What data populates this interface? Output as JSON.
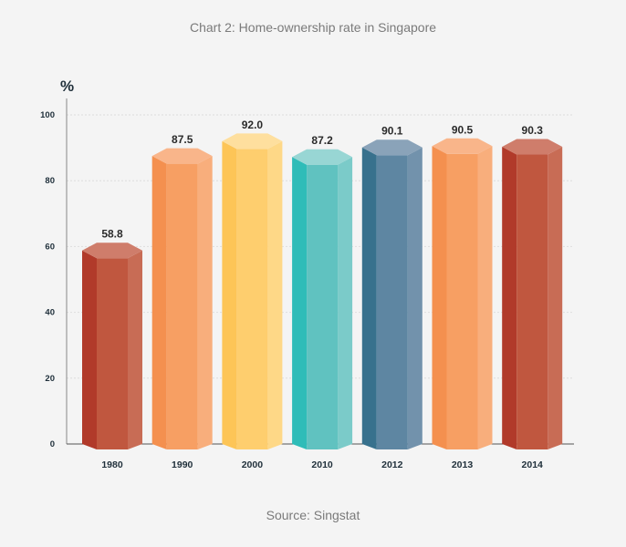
{
  "chart_data": {
    "type": "bar",
    "title": "Chart 2: Home-ownership rate in Singapore",
    "source": "Source: Singstat",
    "ylabel": "%",
    "ylim": [
      0,
      100
    ],
    "yticks": [
      0,
      20,
      40,
      60,
      80,
      100
    ],
    "categories": [
      "1980",
      "1990",
      "2000",
      "2010",
      "2012",
      "2013",
      "2014"
    ],
    "values": [
      58.8,
      87.5,
      92.0,
      87.2,
      90.1,
      90.5,
      90.3
    ],
    "value_labels": [
      "58.8",
      "87.5",
      "92.0",
      "87.2",
      "90.1",
      "90.5",
      "90.3"
    ],
    "grid": true,
    "bar_colors": [
      {
        "left": "#b13a2a",
        "front": "#c0573f",
        "right": "#c86c55",
        "top": "#cf7d6b"
      },
      {
        "left": "#f4904f",
        "front": "#f79f63",
        "right": "#f8ae7c",
        "top": "#f9b58a"
      },
      {
        "left": "#fdc557",
        "front": "#fece6e",
        "right": "#fed887",
        "top": "#fedf9e"
      },
      {
        "left": "#2fbcb8",
        "front": "#60c2c0",
        "right": "#7bcbc9",
        "top": "#98d6d4"
      },
      {
        "left": "#38718d",
        "front": "#5e86a2",
        "right": "#7292ac",
        "top": "#8aa3b9"
      },
      {
        "left": "#f4904f",
        "front": "#f79f63",
        "right": "#f8ae7c",
        "top": "#f9b58a"
      },
      {
        "left": "#b13a2a",
        "front": "#c0573f",
        "right": "#c86c55",
        "top": "#cf7d6b"
      }
    ]
  }
}
